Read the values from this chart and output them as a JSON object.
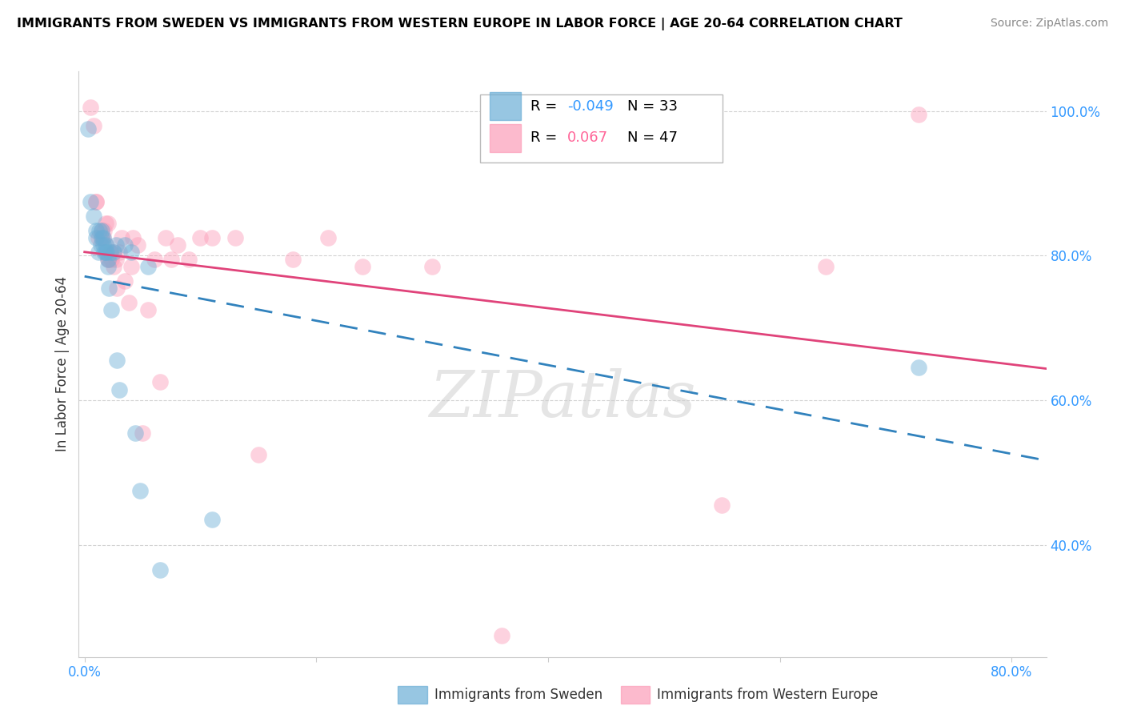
{
  "title": "IMMIGRANTS FROM SWEDEN VS IMMIGRANTS FROM WESTERN EUROPE IN LABOR FORCE | AGE 20-64 CORRELATION CHART",
  "source": "Source: ZipAtlas.com",
  "ylabel": "In Labor Force | Age 20-64",
  "xlim": [
    -0.005,
    0.83
  ],
  "ylim": [
    0.245,
    1.055
  ],
  "yticks": [
    0.4,
    0.6,
    0.8,
    1.0
  ],
  "ytick_labels": [
    "40.0%",
    "60.0%",
    "80.0%",
    "100.0%"
  ],
  "xticks": [
    0.0,
    0.2,
    0.4,
    0.6,
    0.8
  ],
  "xtick_labels": [
    "0.0%",
    "",
    "",
    "",
    "80.0%"
  ],
  "legend_r_blue": "-0.049",
  "legend_n_blue": "33",
  "legend_r_pink": "0.067",
  "legend_n_pink": "47",
  "blue_color": "#6baed6",
  "pink_color": "#fc9db8",
  "blue_line_color": "#3182bd",
  "pink_line_color": "#e0437a",
  "watermark": "ZIPatlas",
  "blue_scatter_x": [
    0.003,
    0.005,
    0.008,
    0.01,
    0.01,
    0.012,
    0.013,
    0.014,
    0.015,
    0.015,
    0.016,
    0.016,
    0.017,
    0.018,
    0.018,
    0.019,
    0.02,
    0.02,
    0.021,
    0.022,
    0.023,
    0.025,
    0.027,
    0.028,
    0.03,
    0.035,
    0.04,
    0.044,
    0.048,
    0.055,
    0.065,
    0.11,
    0.72
  ],
  "blue_scatter_y": [
    0.975,
    0.875,
    0.855,
    0.825,
    0.835,
    0.805,
    0.835,
    0.815,
    0.835,
    0.825,
    0.815,
    0.825,
    0.805,
    0.805,
    0.815,
    0.805,
    0.795,
    0.785,
    0.755,
    0.805,
    0.725,
    0.805,
    0.815,
    0.655,
    0.615,
    0.815,
    0.805,
    0.555,
    0.475,
    0.785,
    0.365,
    0.435,
    0.645
  ],
  "pink_scatter_x": [
    0.005,
    0.008,
    0.01,
    0.01,
    0.012,
    0.015,
    0.015,
    0.016,
    0.017,
    0.018,
    0.019,
    0.02,
    0.02,
    0.021,
    0.022,
    0.023,
    0.025,
    0.025,
    0.027,
    0.028,
    0.03,
    0.032,
    0.035,
    0.038,
    0.04,
    0.042,
    0.046,
    0.05,
    0.055,
    0.06,
    0.065,
    0.07,
    0.075,
    0.08,
    0.09,
    0.1,
    0.11,
    0.13,
    0.15,
    0.18,
    0.21,
    0.24,
    0.3,
    0.36,
    0.55,
    0.64,
    0.72
  ],
  "pink_scatter_y": [
    1.005,
    0.98,
    0.875,
    0.875,
    0.825,
    0.825,
    0.835,
    0.825,
    0.835,
    0.845,
    0.815,
    0.845,
    0.795,
    0.795,
    0.805,
    0.795,
    0.805,
    0.785,
    0.795,
    0.755,
    0.805,
    0.825,
    0.765,
    0.735,
    0.785,
    0.825,
    0.815,
    0.555,
    0.725,
    0.795,
    0.625,
    0.825,
    0.795,
    0.815,
    0.795,
    0.825,
    0.825,
    0.825,
    0.525,
    0.795,
    0.825,
    0.785,
    0.785,
    0.275,
    0.455,
    0.785,
    0.995
  ]
}
